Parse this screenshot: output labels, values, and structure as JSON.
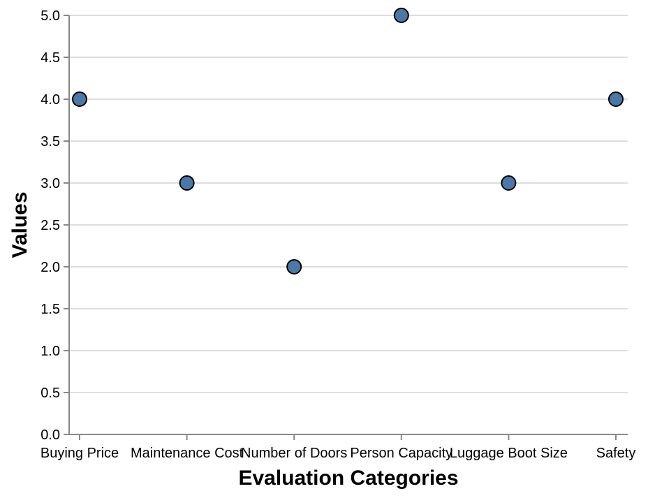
{
  "chart_data": {
    "type": "scatter",
    "title": "",
    "xlabel": "Evaluation Categories",
    "ylabel": "Values",
    "categories": [
      "Buying Price",
      "Maintenance Cost",
      "Number of Doors",
      "Person Capacity",
      "Luggage Boot Size",
      "Safety"
    ],
    "values": [
      4,
      3,
      2,
      5,
      3,
      4
    ],
    "ylim": [
      0,
      5
    ],
    "yticks": [
      "0.0",
      "0.5",
      "1.0",
      "1.5",
      "2.0",
      "2.5",
      "3.0",
      "3.5",
      "4.0",
      "4.5",
      "5.0"
    ],
    "grid": "horizontal",
    "legend": "none",
    "point_color": "#4c78a8",
    "point_stroke": "#000000",
    "grid_color": "#dddddd",
    "axis_color": "#888888"
  }
}
